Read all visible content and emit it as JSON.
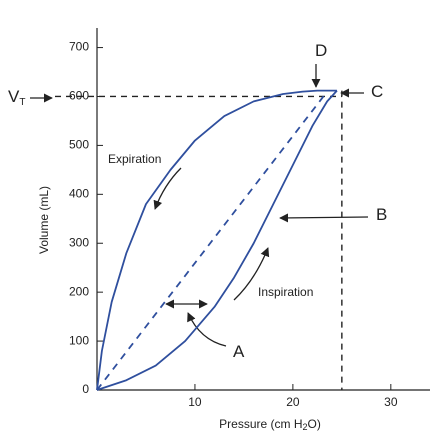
{
  "chart_data": {
    "type": "line",
    "xlabel": [
      "Pressure (cm H",
      "2",
      "O)"
    ],
    "ylabel": "Volume (mL)",
    "xlim": [
      0,
      34
    ],
    "ylim": [
      0,
      740
    ],
    "xticks": [
      10,
      20,
      30
    ],
    "yticks": [
      0,
      100,
      200,
      300,
      400,
      500,
      600,
      700
    ],
    "series": [
      {
        "color": "#2f4f9e",
        "dash": false,
        "x": [
          0,
          3,
          6,
          9,
          12,
          14,
          16,
          18,
          20,
          22,
          23.5,
          24.5
        ],
        "values": [
          0,
          20,
          50,
          100,
          170,
          230,
          300,
          380,
          460,
          540,
          590,
          612
        ]
      },
      {
        "color": "#2f4f9e",
        "dash": false,
        "x": [
          0,
          0.5,
          1.5,
          3,
          5,
          7.5,
          10,
          13,
          16,
          19,
          21,
          22.5,
          24.5
        ],
        "values": [
          0,
          80,
          180,
          280,
          380,
          450,
          510,
          560,
          590,
          605,
          610,
          612,
          612
        ]
      },
      {
        "color": "#2f4f9e",
        "dash": true,
        "x": [
          0,
          23.5
        ],
        "values": [
          0,
          610
        ]
      }
    ],
    "reference_lines": [
      {
        "axis": "y",
        "value": 600,
        "to": 25
      },
      {
        "axis": "x",
        "value": 25,
        "to": 612
      }
    ],
    "annotations": [
      {
        "text": "V",
        "sub": "T"
      },
      {
        "text": "D"
      },
      {
        "text": "C"
      },
      {
        "text": "B"
      },
      {
        "text": "A"
      },
      {
        "text": "Expiration"
      },
      {
        "text": "Inspiration"
      }
    ]
  }
}
